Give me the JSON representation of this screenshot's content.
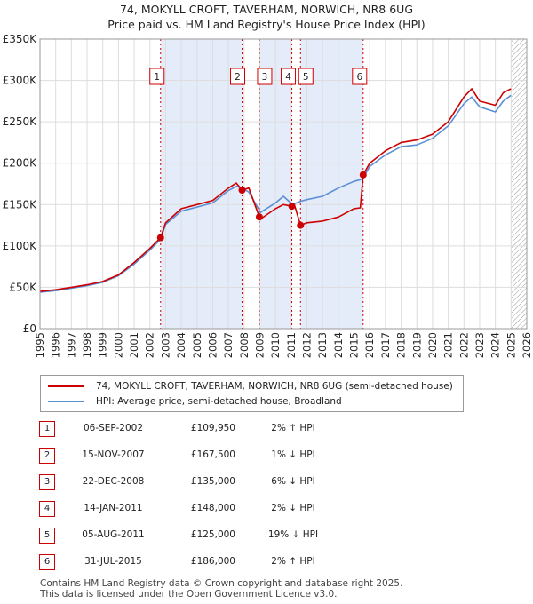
{
  "title_line1": "74, MOKYLL CROFT, TAVERHAM, NORWICH, NR8 6UG",
  "title_line2": "Price paid vs. HM Land Registry's House Price Index (HPI)",
  "colors": {
    "property": "#cc0000",
    "hpi": "#5b8fd6",
    "shade": "#dce6f7",
    "marker_border": "#cc0000"
  },
  "chart_data": {
    "type": "line",
    "title": "74, MOKYLL CROFT, TAVERHAM, NORWICH, NR8 6UG — Price paid vs. HM Land Registry's House Price Index (HPI)",
    "xlabel": "",
    "ylabel": "",
    "xlim": [
      1995,
      2026
    ],
    "ylim": [
      0,
      350000
    ],
    "y_ticks": [
      0,
      50000,
      100000,
      150000,
      200000,
      250000,
      300000,
      350000
    ],
    "y_tick_labels": [
      "£0",
      "£50K",
      "£100K",
      "£150K",
      "£200K",
      "£250K",
      "£300K",
      "£350K"
    ],
    "x_ticks": [
      1995,
      1996,
      1997,
      1998,
      1999,
      2000,
      2001,
      2002,
      2003,
      2004,
      2005,
      2006,
      2007,
      2008,
      2009,
      2010,
      2011,
      2012,
      2013,
      2014,
      2015,
      2016,
      2017,
      2018,
      2019,
      2020,
      2021,
      2022,
      2023,
      2024,
      2025,
      2026
    ],
    "grid": true,
    "shaded_periods": [
      [
        2002.68,
        2007.87
      ],
      [
        2008.97,
        2011.04
      ],
      [
        2011.59,
        2015.58
      ]
    ],
    "future_hatch_from": 2025.0,
    "series": [
      {
        "name": "74, MOKYLL CROFT, TAVERHAM, NORWICH, NR8 6UG (semi-detached house)",
        "x": [
          1995,
          1996,
          1997,
          1998,
          1999,
          2000,
          2001,
          2002,
          2002.68,
          2003,
          2004,
          2005,
          2006,
          2007,
          2007.5,
          2007.87,
          2008.3,
          2008.97,
          2009,
          2010,
          2010.5,
          2011.04,
          2011.2,
          2011.59,
          2012,
          2013,
          2014,
          2015,
          2015.4,
          2015.58,
          2016,
          2017,
          2018,
          2019,
          2020,
          2021,
          2022,
          2022.5,
          2023,
          2024,
          2024.5,
          2025
        ],
        "y": [
          45000,
          47000,
          50000,
          53000,
          57000,
          65000,
          80000,
          97000,
          109950,
          128000,
          145000,
          150000,
          155000,
          170000,
          176000,
          167500,
          170000,
          135000,
          132000,
          145000,
          150000,
          148000,
          150000,
          125000,
          128000,
          130000,
          135000,
          145000,
          146000,
          186000,
          200000,
          215000,
          225000,
          228000,
          235000,
          250000,
          280000,
          290000,
          275000,
          270000,
          285000,
          290000
        ]
      },
      {
        "name": "HPI: Average price, semi-detached house, Broadland",
        "x": [
          1995,
          1996,
          1997,
          1998,
          1999,
          2000,
          2001,
          2002,
          2002.68,
          2003,
          2004,
          2005,
          2006,
          2007,
          2007.5,
          2007.87,
          2008.3,
          2008.97,
          2009,
          2010,
          2010.5,
          2011.04,
          2011.2,
          2011.59,
          2012,
          2013,
          2014,
          2015,
          2015.4,
          2015.58,
          2016,
          2017,
          2018,
          2019,
          2020,
          2021,
          2022,
          2022.5,
          2023,
          2024,
          2024.5,
          2025
        ],
        "y": [
          44000,
          46000,
          49000,
          52000,
          56000,
          64000,
          78000,
          95000,
          108000,
          126000,
          142000,
          147000,
          152000,
          167000,
          172000,
          170000,
          165000,
          143000,
          140000,
          152000,
          160000,
          151000,
          151000,
          154000,
          156000,
          160000,
          170000,
          178000,
          180000,
          182000,
          196000,
          210000,
          220000,
          222000,
          230000,
          245000,
          272000,
          280000,
          268000,
          262000,
          275000,
          282000
        ]
      }
    ],
    "sales": [
      {
        "label": "1",
        "x": 2002.68,
        "y": 109950
      },
      {
        "label": "2",
        "x": 2007.87,
        "y": 167500
      },
      {
        "label": "3",
        "x": 2008.97,
        "y": 135000
      },
      {
        "label": "4",
        "x": 2011.04,
        "y": 148000
      },
      {
        "label": "5",
        "x": 2011.59,
        "y": 125000
      },
      {
        "label": "6",
        "x": 2015.58,
        "y": 186000
      }
    ]
  },
  "legend": {
    "property": "74, MOKYLL CROFT, TAVERHAM, NORWICH, NR8 6UG (semi-detached house)",
    "hpi": "HPI: Average price, semi-detached house, Broadland"
  },
  "transactions": [
    {
      "num": "1",
      "date": "06-SEP-2002",
      "price": "£109,950",
      "hpi": "2% ↑ HPI"
    },
    {
      "num": "2",
      "date": "15-NOV-2007",
      "price": "£167,500",
      "hpi": "1% ↓ HPI"
    },
    {
      "num": "3",
      "date": "22-DEC-2008",
      "price": "£135,000",
      "hpi": "6% ↓ HPI"
    },
    {
      "num": "4",
      "date": "14-JAN-2011",
      "price": "£148,000",
      "hpi": "2% ↓ HPI"
    },
    {
      "num": "5",
      "date": "05-AUG-2011",
      "price": "£125,000",
      "hpi": "19% ↓ HPI"
    },
    {
      "num": "6",
      "date": "31-JUL-2015",
      "price": "£186,000",
      "hpi": "2% ↑ HPI"
    }
  ],
  "footer": {
    "line1": "Contains HM Land Registry data © Crown copyright and database right 2025.",
    "line2": "This data is licensed under the Open Government Licence v3.0."
  }
}
